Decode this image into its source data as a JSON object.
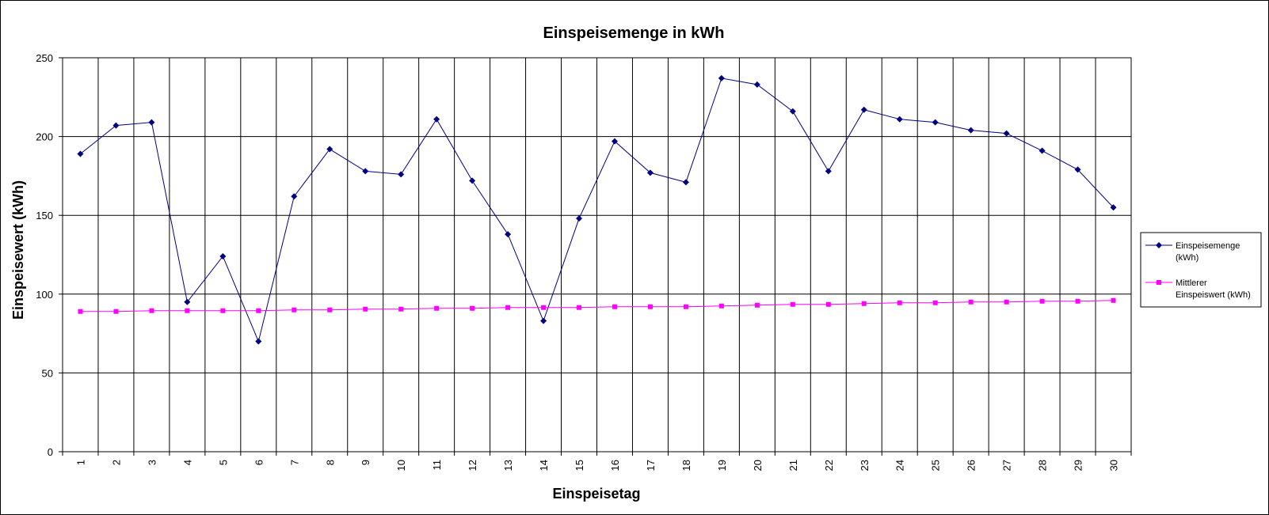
{
  "chart_data": {
    "type": "line",
    "title": "Einspeisemenge in kWh",
    "xlabel": "Einspeisetag",
    "ylabel": "Einspeisewert  (kWh)",
    "ylim": [
      0,
      250
    ],
    "yticks": [
      0,
      50,
      100,
      150,
      200,
      250
    ],
    "categories": [
      "1",
      "2",
      "3",
      "4",
      "5",
      "6",
      "7",
      "8",
      "9",
      "10",
      "11",
      "12",
      "13",
      "14",
      "15",
      "16",
      "17",
      "18",
      "19",
      "20",
      "21",
      "22",
      "23",
      "24",
      "25",
      "26",
      "27",
      "28",
      "29",
      "30"
    ],
    "grid": "vertical and horizontal",
    "legend_position": "right",
    "series": [
      {
        "name": "Einspeisemenge (kWh)",
        "legend_lines": [
          "Einspeisemenge",
          "(kWh)"
        ],
        "color": "#000080",
        "marker": "diamond",
        "values": [
          189,
          207,
          209,
          95,
          124,
          70,
          162,
          192,
          178,
          176,
          211,
          172,
          138,
          83,
          148,
          197,
          177,
          171,
          237,
          233,
          216,
          178,
          217,
          211,
          209,
          204,
          202,
          191,
          179,
          155
        ]
      },
      {
        "name": "Mittlerer Einspeiswert (kWh)",
        "legend_lines": [
          "Mittlerer",
          "Einspeiswert (kWh)"
        ],
        "color": "#FF00FF",
        "marker": "square",
        "values": [
          89,
          89,
          89.5,
          89.5,
          89.5,
          89.5,
          90,
          90,
          90.5,
          90.5,
          91,
          91,
          91.5,
          91.5,
          91.5,
          92,
          92,
          92,
          92.5,
          93,
          93.5,
          93.5,
          94,
          94.5,
          94.5,
          95,
          95,
          95.5,
          95.5,
          96
        ]
      }
    ]
  }
}
